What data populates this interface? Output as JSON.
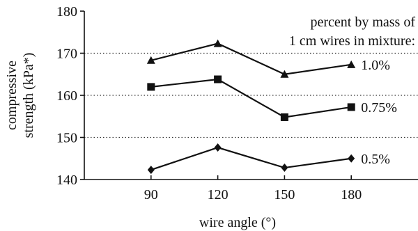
{
  "chart_data": {
    "type": "line",
    "x": [
      90,
      120,
      150,
      180
    ],
    "series": [
      {
        "name": "1.0%",
        "marker": "triangle",
        "values": [
          168.3,
          172.3,
          165.0,
          167.3
        ]
      },
      {
        "name": "0.75%",
        "marker": "square",
        "values": [
          162.0,
          163.8,
          154.8,
          157.2
        ]
      },
      {
        "name": "0.5%",
        "marker": "diamond",
        "values": [
          142.3,
          147.6,
          142.8,
          145.0
        ]
      }
    ],
    "xlabel": "wire angle (°)",
    "ylabel_line1": "compressive",
    "ylabel_line2": "strength (kPa*)",
    "legend_title_line1": "percent by mass of",
    "legend_title_line2": "1 cm wires in mixture:",
    "ylim": [
      140,
      180
    ],
    "yticks": [
      140,
      150,
      160,
      170,
      180
    ],
    "xlim": [
      60,
      210
    ],
    "xticks": [
      90,
      120,
      150,
      180
    ],
    "grid": "horizontal dotted at 150, 160, 170",
    "legend_placement": "top-right"
  }
}
